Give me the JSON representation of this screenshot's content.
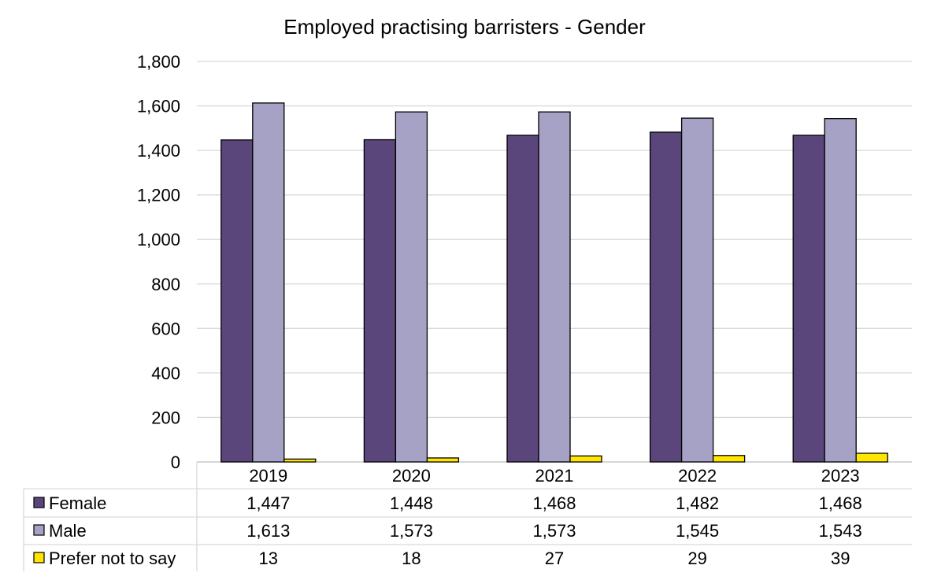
{
  "chart_data": {
    "type": "bar",
    "title": "Employed practising barristers - Gender",
    "xlabel": "",
    "ylabel": "",
    "categories": [
      "2019",
      "2020",
      "2021",
      "2022",
      "2023"
    ],
    "series": [
      {
        "name": "Female",
        "values": [
          1447,
          1448,
          1468,
          1482,
          1468
        ],
        "color": "#5a467a"
      },
      {
        "name": "Male",
        "values": [
          1613,
          1573,
          1573,
          1545,
          1543
        ],
        "color": "#a6a2c6"
      },
      {
        "name": "Prefer not to say",
        "values": [
          13,
          18,
          27,
          29,
          39
        ],
        "color": "#ffe600"
      }
    ],
    "data_table": [
      {
        "label": "Female",
        "values": [
          "1,447",
          "1,448",
          "1,468",
          "1,482",
          "1,468"
        ]
      },
      {
        "label": "Male",
        "values": [
          "1,613",
          "1,573",
          "1,573",
          "1,545",
          "1,543"
        ]
      },
      {
        "label": "Prefer not to say",
        "values": [
          "13",
          "18",
          "27",
          "29",
          "39"
        ]
      }
    ],
    "ylim": [
      0,
      1800
    ],
    "yticks": [
      0,
      200,
      400,
      600,
      800,
      1000,
      1200,
      1400,
      1600,
      1800
    ],
    "ytick_labels": [
      "0",
      "200",
      "400",
      "600",
      "800",
      "1,000",
      "1,200",
      "1,400",
      "1,600",
      "1,800"
    ],
    "grid": true,
    "legend": "data table"
  }
}
